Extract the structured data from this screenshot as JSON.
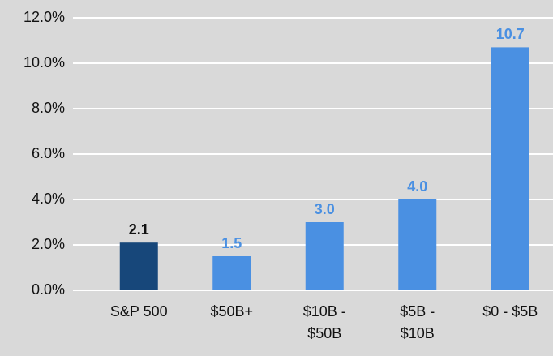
{
  "chart_data": {
    "type": "bar",
    "categories": [
      "S&P 500",
      "$50B+",
      "$10B - $50B",
      "$5B - $10B",
      "$0 - $5B"
    ],
    "values": [
      2.1,
      1.5,
      3.0,
      4.0,
      10.7
    ],
    "value_labels": [
      "2.1",
      "1.5",
      "3.0",
      "4.0",
      "10.7"
    ],
    "colors": [
      "#17477a",
      "#4a90e2",
      "#4a90e2",
      "#4a90e2",
      "#4a90e2"
    ],
    "label_colors": [
      "#111111",
      "#4a90e2",
      "#4a90e2",
      "#4a90e2",
      "#4a90e2"
    ],
    "ylim": [
      0,
      12
    ],
    "yticks": [
      {
        "value": 0,
        "label": "0.0%"
      },
      {
        "value": 2,
        "label": "2.0%"
      },
      {
        "value": 4,
        "label": "4.0%"
      },
      {
        "value": 6,
        "label": "6.0%"
      },
      {
        "value": 8,
        "label": "8.0%"
      },
      {
        "value": 10,
        "label": "10.0%"
      },
      {
        "value": 12,
        "label": "12.0%"
      }
    ],
    "grid": true
  }
}
